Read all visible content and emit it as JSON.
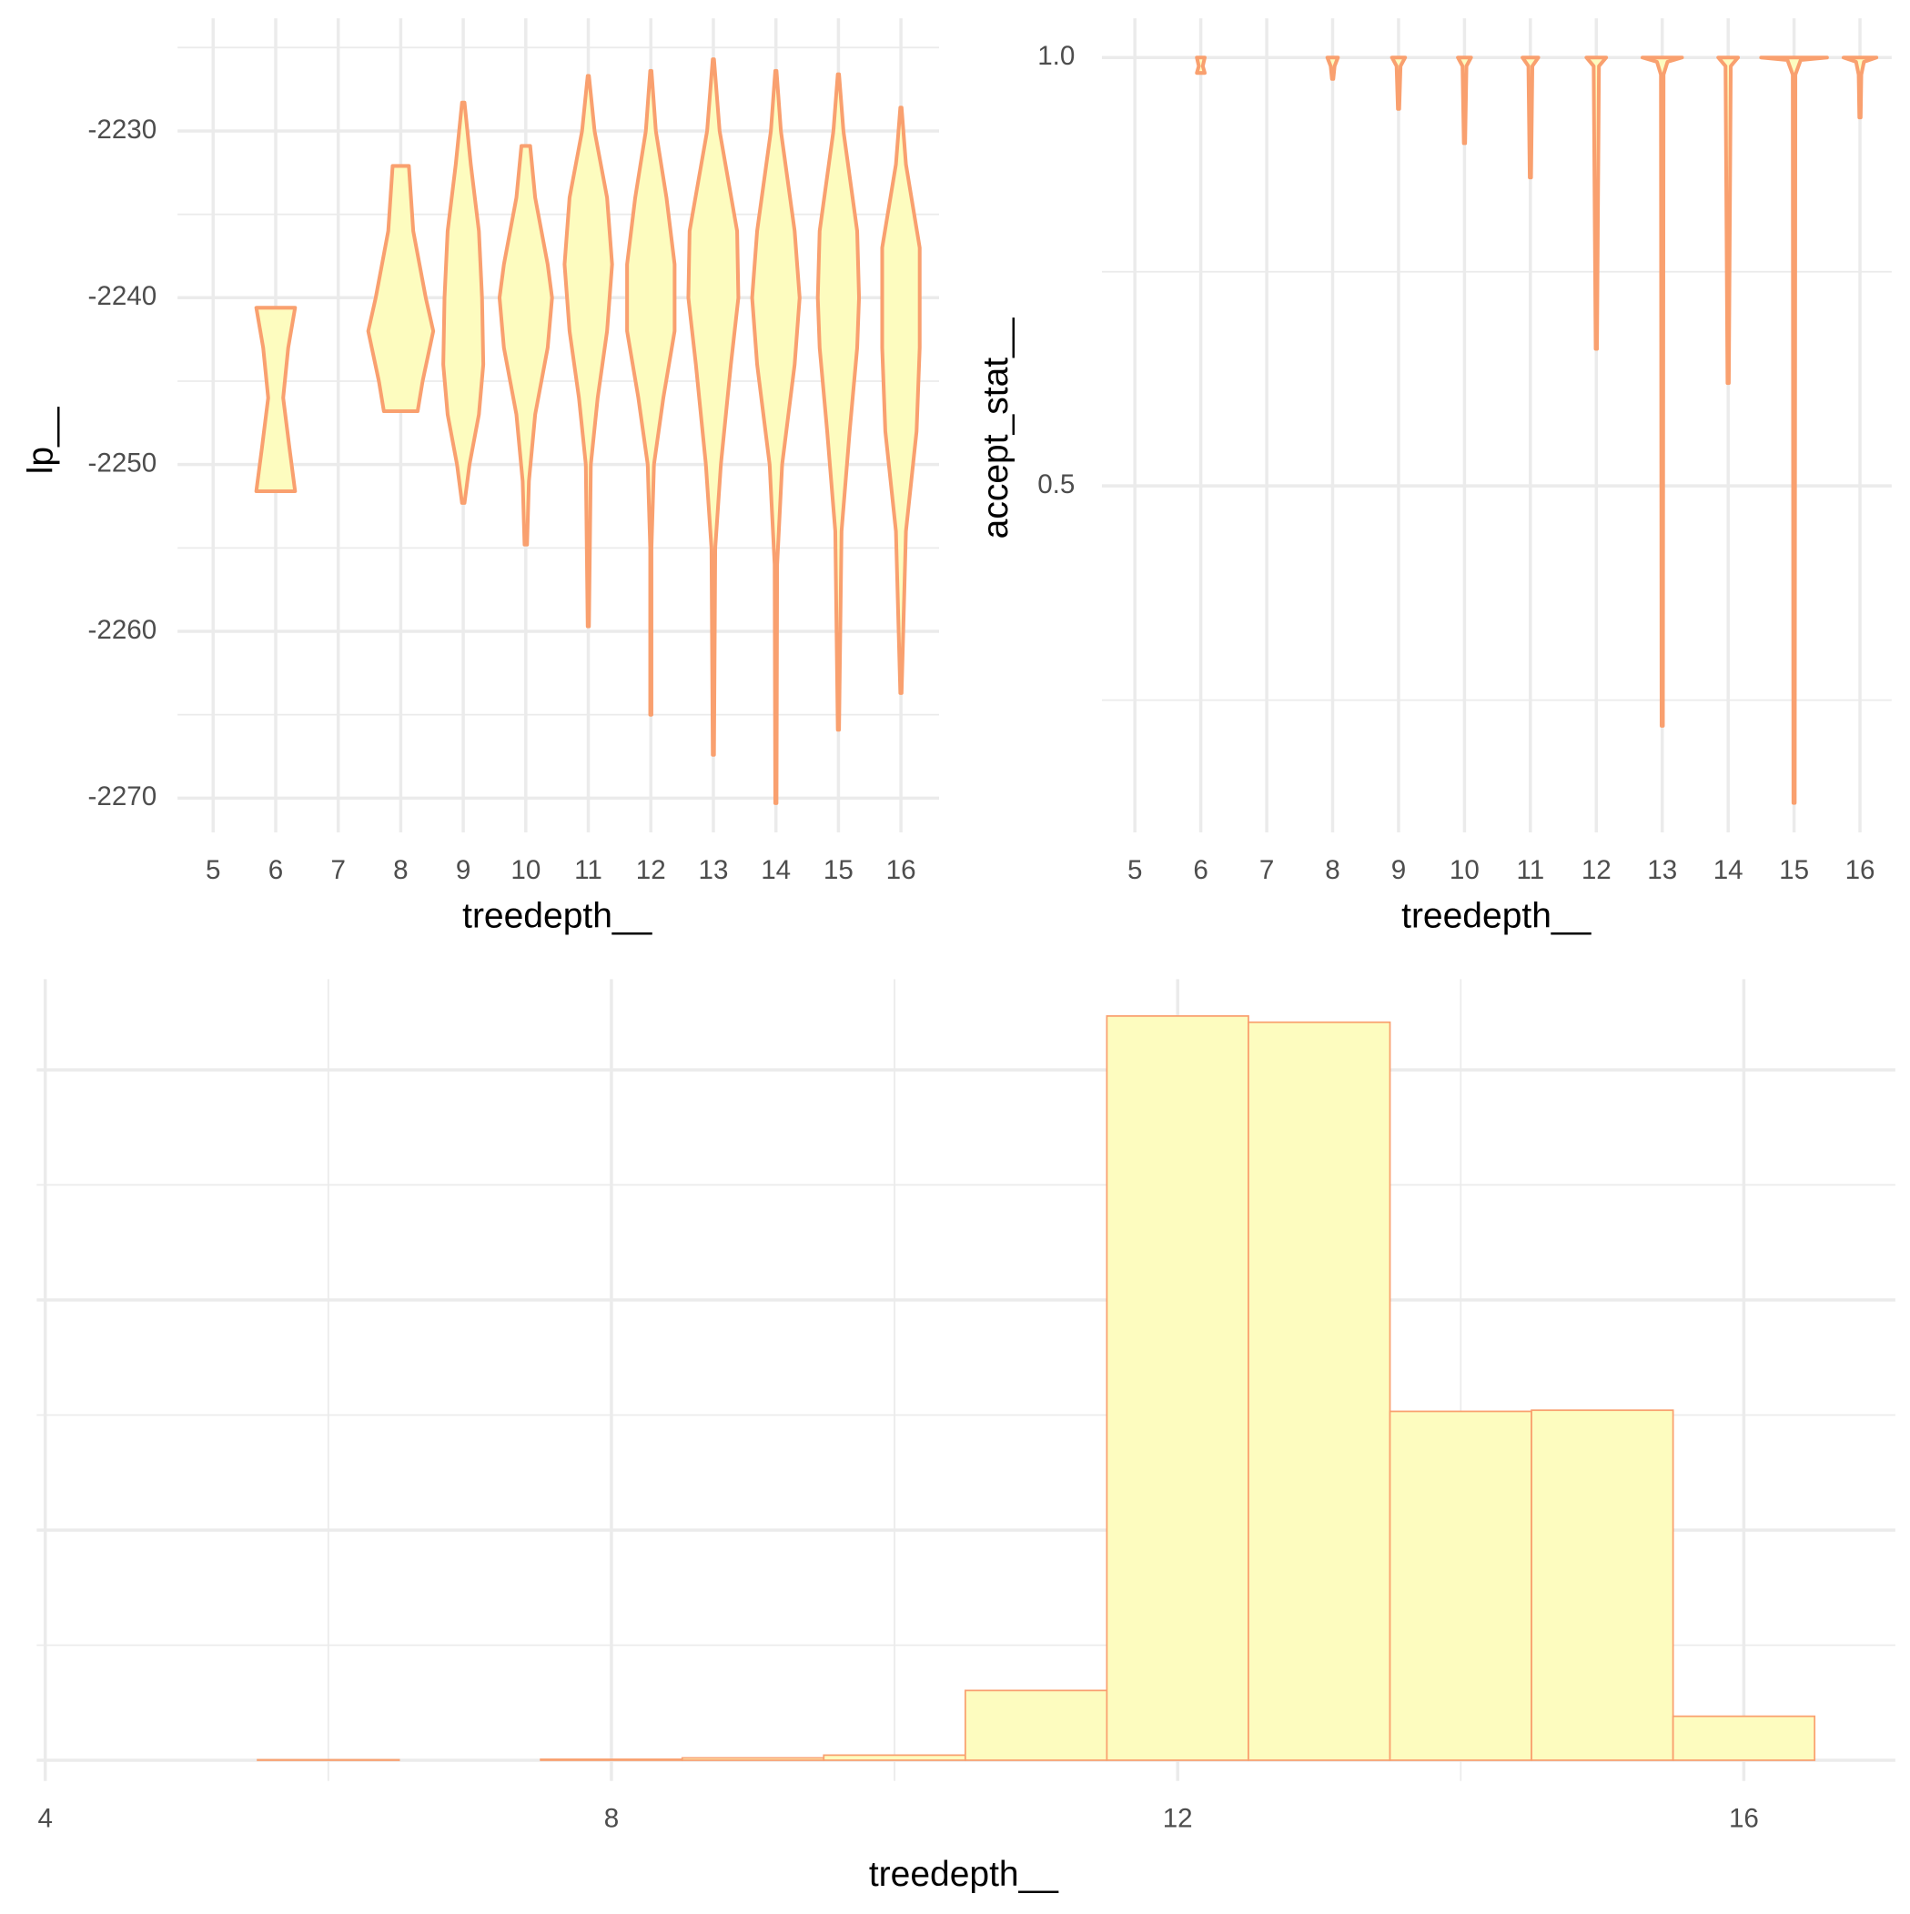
{
  "chart_data": [
    {
      "type": "violin",
      "x_label": "treedepth__",
      "y_label": "lp__",
      "xlim": [
        4.43,
        16.61
      ],
      "xticks": [
        5,
        6,
        7,
        8,
        9,
        10,
        11,
        12,
        13,
        14,
        15,
        16
      ],
      "ylim": [
        -2272.05,
        -2223.25
      ],
      "yticks": [
        -2270,
        -2260,
        -2250,
        -2240,
        -2230
      ],
      "fill": "#fdfcbf",
      "color": "#f9a06f",
      "grid": true,
      "violins": [
        {
          "x": 6,
          "y": [
            -2240.6,
            -2243,
            -2246,
            -2249,
            -2251.6
          ],
          "width": [
            0.31,
            0.2,
            0.12,
            0.22,
            0.31
          ]
        },
        {
          "x": 8,
          "y": [
            -2232.1,
            -2236,
            -2240,
            -2242,
            -2245,
            -2246.8
          ],
          "width": [
            0.13,
            0.2,
            0.4,
            0.52,
            0.35,
            0.27
          ]
        },
        {
          "x": 9,
          "y": [
            -2228.3,
            -2232,
            -2236,
            -2240,
            -2244,
            -2247,
            -2250,
            -2252.3
          ],
          "width": [
            0.02,
            0.12,
            0.25,
            0.3,
            0.32,
            0.25,
            0.1,
            0.02
          ]
        },
        {
          "x": 10,
          "y": [
            -2230.9,
            -2234,
            -2238,
            -2240,
            -2243,
            -2247,
            -2251,
            -2254.8
          ],
          "width": [
            0.07,
            0.15,
            0.35,
            0.42,
            0.35,
            0.15,
            0.05,
            0.02
          ]
        },
        {
          "x": 11,
          "y": [
            -2226.7,
            -2230,
            -2234,
            -2238,
            -2242,
            -2246,
            -2250,
            -2259.7
          ],
          "width": [
            0.01,
            0.1,
            0.3,
            0.38,
            0.3,
            0.15,
            0.04,
            0.01
          ]
        },
        {
          "x": 12,
          "y": [
            -2226.4,
            -2230,
            -2234,
            -2238,
            -2242,
            -2246,
            -2250,
            -2255,
            -2265
          ],
          "width": [
            0.01,
            0.08,
            0.25,
            0.38,
            0.38,
            0.2,
            0.05,
            0.01,
            0.01
          ]
        },
        {
          "x": 13,
          "y": [
            -2225.7,
            -2230,
            -2236,
            -2240,
            -2244,
            -2250,
            -2255,
            -2267.4
          ],
          "width": [
            0.01,
            0.1,
            0.38,
            0.4,
            0.28,
            0.12,
            0.03,
            0.01
          ]
        },
        {
          "x": 14,
          "y": [
            -2226.4,
            -2230,
            -2236,
            -2240,
            -2244,
            -2250,
            -2256,
            -2270.3
          ],
          "width": [
            0.01,
            0.08,
            0.3,
            0.38,
            0.3,
            0.1,
            0.02,
            0.01
          ]
        },
        {
          "x": 15,
          "y": [
            -2226.6,
            -2230,
            -2236,
            -2240,
            -2243,
            -2248,
            -2254,
            -2265.9
          ],
          "width": [
            0.01,
            0.08,
            0.3,
            0.33,
            0.3,
            0.18,
            0.05,
            0.01
          ]
        },
        {
          "x": 16,
          "y": [
            -2228.6,
            -2232,
            -2237,
            -2243,
            -2248,
            -2254,
            -2263.7
          ],
          "width": [
            0.01,
            0.08,
            0.3,
            0.3,
            0.25,
            0.08,
            0.01
          ]
        }
      ]
    },
    {
      "type": "violin",
      "x_label": "treedepth__",
      "y_label": "accept_stat__",
      "xlim": [
        4.5,
        16.48
      ],
      "xticks": [
        5,
        6,
        7,
        8,
        9,
        10,
        11,
        12,
        13,
        14,
        15,
        16
      ],
      "ylim": [
        0.0957,
        1.0457
      ],
      "yticks": [
        {
          "value": 0.5,
          "label": "0.5"
        },
        {
          "value": 1,
          "label": "1.0"
        }
      ],
      "fill": "#fdfcbf",
      "color": "#f9a06f",
      "grid": true,
      "violins": [
        {
          "x": 6,
          "y": [
            1.0,
            0.99,
            0.982
          ],
          "width": [
            0.06,
            0.03,
            0.06
          ]
        },
        {
          "x": 8,
          "y": [
            1.0,
            0.99,
            0.975
          ],
          "width": [
            0.08,
            0.03,
            0.01
          ]
        },
        {
          "x": 9,
          "y": [
            1.0,
            0.99,
            0.94
          ],
          "width": [
            0.1,
            0.03,
            0.01
          ]
        },
        {
          "x": 10,
          "y": [
            1.0,
            0.99,
            0.9
          ],
          "width": [
            0.1,
            0.03,
            0.01
          ]
        },
        {
          "x": 11,
          "y": [
            1.0,
            0.99,
            0.86
          ],
          "width": [
            0.12,
            0.03,
            0.01
          ]
        },
        {
          "x": 12,
          "y": [
            1.0,
            0.99,
            0.66
          ],
          "width": [
            0.15,
            0.04,
            0.01
          ]
        },
        {
          "x": 13,
          "y": [
            1.0,
            0.995,
            0.98,
            0.22
          ],
          "width": [
            0.3,
            0.08,
            0.02,
            0.01
          ]
        },
        {
          "x": 14,
          "y": [
            1.0,
            0.99,
            0.62
          ],
          "width": [
            0.15,
            0.04,
            0.01
          ]
        },
        {
          "x": 15,
          "y": [
            1.0,
            0.997,
            0.98,
            0.13
          ],
          "width": [
            0.5,
            0.1,
            0.02,
            0.01
          ]
        },
        {
          "x": 16,
          "y": [
            1.0,
            0.995,
            0.98,
            0.93
          ],
          "width": [
            0.25,
            0.06,
            0.02,
            0.01
          ]
        }
      ]
    },
    {
      "type": "histogram",
      "x_label": "treedepth__",
      "xlim": [
        3.94,
        17.07
      ],
      "xticks": [
        4,
        8,
        12,
        16
      ],
      "ylim": [
        -90,
        3394
      ],
      "yticks": [
        0,
        1000,
        2000,
        3000
      ],
      "ytick_labels": false,
      "fill": "#fdfcbf",
      "color": "#f9a06f",
      "grid": true,
      "bins": [
        4.5,
        5.5,
        6.5,
        7.5,
        8.5,
        9.5,
        10.5,
        11.5,
        12.5,
        13.5,
        14.5,
        15.5,
        16.5
      ],
      "counts": [
        0,
        2,
        0,
        4,
        10,
        22,
        303,
        3234,
        3207,
        1516,
        1521,
        191
      ]
    }
  ]
}
